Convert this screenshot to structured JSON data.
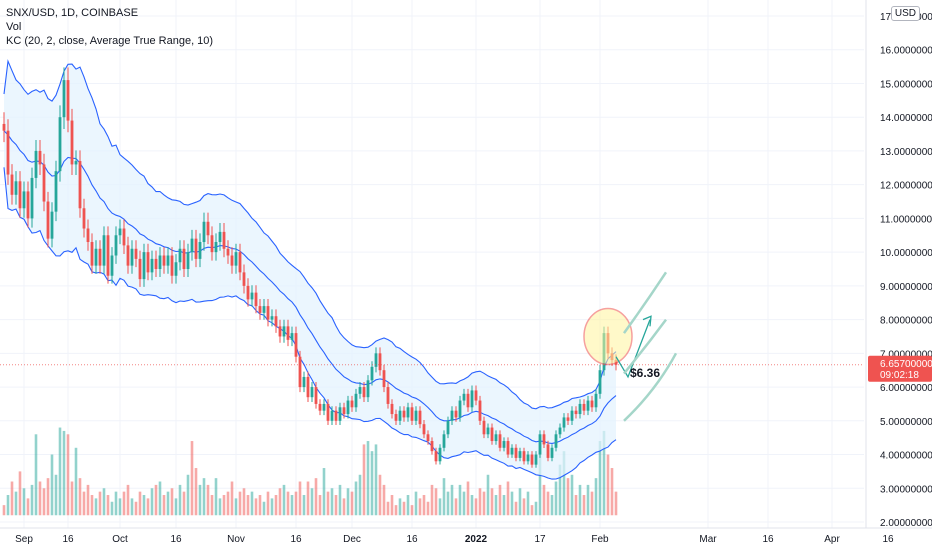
{
  "legend": {
    "symbol": "SNX/USD, 1D, COINBASE",
    "volume": "Vol",
    "indicator": "KC (20, 2, close, Average True Range, 10)"
  },
  "currency_badge": "USD",
  "price_badge": {
    "value": "6.65700000",
    "countdown": "09:02:18"
  },
  "annotation": {
    "target_label": "$6.36"
  },
  "colors": {
    "up": "#26a69a",
    "down": "#ef5350",
    "keltner_band": "#2962ff",
    "keltner_fill": "#e3f2fd",
    "projection": "#a5d6c9",
    "circle_fill": "#fff59d",
    "circle_stroke": "#ef5350",
    "badge": "#ef5350"
  },
  "chart_data": {
    "type": "candlestick",
    "y_axis": {
      "min": 2,
      "max": 17,
      "ticks": [
        "2.00000000",
        "3.00000000",
        "4.00000000",
        "5.00000000",
        "6.00000000",
        "7.00000000",
        "8.00000000",
        "9.00000000",
        "10.00000000",
        "11.00000000",
        "12.00000000",
        "13.00000000",
        "14.00000000",
        "15.00000000",
        "16.00000000",
        "17.00000000"
      ]
    },
    "x_ticks": [
      {
        "label": "Sep",
        "bar": 5
      },
      {
        "label": "16",
        "bar": 16
      },
      {
        "label": "Oct",
        "bar": 29
      },
      {
        "label": "16",
        "bar": 43
      },
      {
        "label": "Nov",
        "bar": 58
      },
      {
        "label": "16",
        "bar": 73
      },
      {
        "label": "Dec",
        "bar": 87
      },
      {
        "label": "16",
        "bar": 102
      },
      {
        "label": "2022",
        "bar": 118
      },
      {
        "label": "17",
        "bar": 134
      },
      {
        "label": "Feb",
        "bar": 149
      },
      {
        "label": "Mar",
        "bar": 176
      },
      {
        "label": "16",
        "bar": 191
      },
      {
        "label": "Apr",
        "bar": 207
      },
      {
        "label": "16",
        "bar": 221
      }
    ],
    "candles": [
      [
        13.8,
        13.6
      ],
      [
        13.6,
        12.3
      ],
      [
        12.3,
        11.7
      ],
      [
        11.7,
        12.1
      ],
      [
        12.1,
        11.3
      ],
      [
        11.3,
        11.8
      ],
      [
        11.8,
        11.0
      ],
      [
        11.0,
        12.2
      ],
      [
        12.2,
        13.0
      ],
      [
        13.0,
        12.6
      ],
      [
        12.6,
        11.5
      ],
      [
        11.5,
        10.4
      ],
      [
        10.4,
        11.2
      ],
      [
        11.2,
        12.4
      ],
      [
        12.4,
        14.0
      ],
      [
        14.0,
        15.1
      ],
      [
        15.1,
        13.9
      ],
      [
        13.9,
        12.6
      ],
      [
        12.6,
        12.7
      ],
      [
        12.7,
        11.3
      ],
      [
        11.3,
        10.7
      ],
      [
        10.7,
        10.3
      ],
      [
        10.3,
        9.6
      ],
      [
        9.6,
        10.1
      ],
      [
        10.1,
        9.6
      ],
      [
        9.6,
        10.5
      ],
      [
        10.5,
        9.3
      ],
      [
        9.3,
        9.9
      ],
      [
        9.9,
        10.5
      ],
      [
        10.5,
        10.7
      ],
      [
        10.7,
        10.2
      ],
      [
        10.2,
        9.6
      ],
      [
        9.6,
        10.1
      ],
      [
        10.1,
        9.8
      ],
      [
        9.8,
        9.2
      ],
      [
        9.2,
        10.0
      ],
      [
        10.0,
        9.4
      ],
      [
        9.4,
        9.8
      ],
      [
        9.8,
        9.5
      ],
      [
        9.5,
        9.9
      ],
      [
        9.9,
        9.6
      ],
      [
        9.6,
        9.9
      ],
      [
        9.9,
        9.3
      ],
      [
        9.3,
        9.7
      ],
      [
        9.7,
        10.1
      ],
      [
        10.1,
        9.5
      ],
      [
        9.5,
        10.0
      ],
      [
        10.0,
        10.4
      ],
      [
        10.4,
        9.8
      ],
      [
        9.8,
        10.3
      ],
      [
        10.3,
        10.9
      ],
      [
        10.9,
        10.5
      ],
      [
        10.5,
        10.0
      ],
      [
        10.0,
        10.3
      ],
      [
        10.3,
        10.6
      ],
      [
        10.6,
        10.1
      ],
      [
        10.1,
        9.9
      ],
      [
        9.9,
        9.6
      ],
      [
        9.6,
        10.0
      ],
      [
        10.0,
        9.4
      ],
      [
        9.4,
        9.0
      ],
      [
        9.0,
        8.6
      ],
      [
        8.6,
        8.8
      ],
      [
        8.8,
        8.4
      ],
      [
        8.4,
        8.2
      ],
      [
        8.2,
        8.4
      ],
      [
        8.4,
        8.0
      ],
      [
        8.0,
        8.1
      ],
      [
        8.1,
        7.8
      ],
      [
        7.8,
        7.5
      ],
      [
        7.5,
        7.8
      ],
      [
        7.8,
        7.4
      ],
      [
        7.4,
        7.6
      ],
      [
        7.6,
        6.9
      ],
      [
        6.9,
        6.0
      ],
      [
        6.0,
        6.3
      ],
      [
        6.3,
        5.7
      ],
      [
        5.7,
        6.0
      ],
      [
        6.0,
        5.5
      ],
      [
        5.5,
        5.3
      ],
      [
        5.3,
        5.5
      ],
      [
        5.5,
        5.0
      ],
      [
        5.0,
        5.3
      ],
      [
        5.3,
        5.0
      ],
      [
        5.0,
        5.4
      ],
      [
        5.4,
        5.2
      ],
      [
        5.2,
        5.6
      ],
      [
        5.6,
        5.4
      ],
      [
        5.4,
        5.8
      ],
      [
        5.8,
        6.0
      ],
      [
        6.0,
        5.7
      ],
      [
        5.7,
        6.2
      ],
      [
        6.2,
        6.6
      ],
      [
        6.6,
        7.0
      ],
      [
        7.0,
        6.5
      ],
      [
        6.5,
        6.0
      ],
      [
        6.0,
        5.5
      ],
      [
        5.5,
        5.2
      ],
      [
        5.2,
        5.0
      ],
      [
        5.0,
        5.3
      ],
      [
        5.3,
        5.1
      ],
      [
        5.1,
        5.4
      ],
      [
        5.4,
        5.0
      ],
      [
        5.0,
        5.3
      ],
      [
        5.3,
        4.9
      ],
      [
        4.9,
        4.6
      ],
      [
        4.6,
        4.4
      ],
      [
        4.4,
        4.1
      ],
      [
        4.1,
        3.8
      ],
      [
        3.8,
        4.2
      ],
      [
        4.2,
        4.6
      ],
      [
        4.6,
        5.0
      ],
      [
        5.0,
        5.3
      ],
      [
        5.3,
        5.1
      ],
      [
        5.1,
        5.6
      ],
      [
        5.6,
        5.8
      ],
      [
        5.8,
        5.4
      ],
      [
        5.4,
        5.9
      ],
      [
        5.9,
        5.6
      ],
      [
        5.6,
        5.0
      ],
      [
        5.0,
        4.6
      ],
      [
        4.6,
        4.8
      ],
      [
        4.8,
        4.4
      ],
      [
        4.4,
        4.6
      ],
      [
        4.6,
        4.2
      ],
      [
        4.2,
        4.4
      ],
      [
        4.4,
        4.0
      ],
      [
        4.0,
        4.2
      ],
      [
        4.2,
        3.9
      ],
      [
        3.9,
        4.1
      ],
      [
        4.1,
        3.8
      ],
      [
        3.8,
        4.0
      ],
      [
        4.0,
        3.7
      ],
      [
        3.7,
        4.0
      ],
      [
        4.0,
        4.6
      ],
      [
        4.6,
        4.3
      ],
      [
        4.3,
        3.9
      ],
      [
        3.9,
        4.2
      ],
      [
        4.2,
        4.6
      ],
      [
        4.6,
        4.8
      ],
      [
        4.8,
        5.1
      ],
      [
        5.1,
        5.0
      ],
      [
        5.0,
        5.3
      ],
      [
        5.3,
        5.2
      ],
      [
        5.2,
        5.5
      ],
      [
        5.5,
        5.3
      ],
      [
        5.3,
        5.6
      ],
      [
        5.6,
        5.4
      ],
      [
        5.4,
        5.8
      ],
      [
        5.8,
        6.5
      ],
      [
        6.5,
        7.6
      ],
      [
        7.6,
        7.0
      ],
      [
        7.0,
        6.8
      ],
      [
        6.8,
        6.66
      ]
    ],
    "volumes": [
      [
        2.5,
        0
      ],
      [
        2.8,
        1
      ],
      [
        3.2,
        0
      ],
      [
        2.9,
        1
      ],
      [
        3.5,
        0
      ],
      [
        3.0,
        1
      ],
      [
        2.7,
        0
      ],
      [
        3.1,
        1
      ],
      [
        4.6,
        1
      ],
      [
        3.2,
        0
      ],
      [
        3.0,
        0
      ],
      [
        3.3,
        0
      ],
      [
        4.0,
        1
      ],
      [
        3.4,
        1
      ],
      [
        4.8,
        1
      ],
      [
        4.7,
        1
      ],
      [
        4.6,
        0
      ],
      [
        3.2,
        0
      ],
      [
        4.2,
        1
      ],
      [
        3.3,
        0
      ],
      [
        2.9,
        0
      ],
      [
        3.1,
        0
      ],
      [
        2.8,
        0
      ],
      [
        2.7,
        1
      ],
      [
        2.9,
        0
      ],
      [
        3.0,
        1
      ],
      [
        2.8,
        0
      ],
      [
        2.6,
        1
      ],
      [
        2.9,
        1
      ],
      [
        2.7,
        1
      ],
      [
        2.9,
        0
      ],
      [
        3.1,
        0
      ],
      [
        2.7,
        1
      ],
      [
        2.6,
        0
      ],
      [
        2.9,
        0
      ],
      [
        2.8,
        1
      ],
      [
        2.7,
        0
      ],
      [
        3.0,
        1
      ],
      [
        3.1,
        0
      ],
      [
        3.2,
        1
      ],
      [
        2.8,
        0
      ],
      [
        2.9,
        1
      ],
      [
        3.0,
        0
      ],
      [
        2.7,
        1
      ],
      [
        3.1,
        1
      ],
      [
        2.9,
        0
      ],
      [
        3.4,
        1
      ],
      [
        4.4,
        0
      ],
      [
        3.6,
        0
      ],
      [
        3.1,
        1
      ],
      [
        3.3,
        1
      ],
      [
        3.1,
        0
      ],
      [
        2.8,
        0
      ],
      [
        3.3,
        1
      ],
      [
        2.7,
        1
      ],
      [
        2.8,
        0
      ],
      [
        2.9,
        0
      ],
      [
        3.2,
        0
      ],
      [
        2.7,
        1
      ],
      [
        2.9,
        0
      ],
      [
        3.0,
        0
      ],
      [
        2.8,
        0
      ],
      [
        2.9,
        1
      ],
      [
        2.7,
        0
      ],
      [
        2.8,
        0
      ],
      [
        2.6,
        1
      ],
      [
        2.9,
        0
      ],
      [
        2.7,
        1
      ],
      [
        2.8,
        0
      ],
      [
        3.0,
        0
      ],
      [
        3.1,
        1
      ],
      [
        2.9,
        0
      ],
      [
        2.8,
        1
      ],
      [
        2.9,
        0
      ],
      [
        3.2,
        0
      ],
      [
        2.8,
        1
      ],
      [
        3.2,
        0
      ],
      [
        3.0,
        1
      ],
      [
        3.3,
        0
      ],
      [
        2.8,
        0
      ],
      [
        3.6,
        1
      ],
      [
        2.9,
        0
      ],
      [
        3.0,
        1
      ],
      [
        2.8,
        0
      ],
      [
        3.1,
        1
      ],
      [
        2.7,
        0
      ],
      [
        3.0,
        1
      ],
      [
        2.9,
        0
      ],
      [
        3.2,
        1
      ],
      [
        3.4,
        1
      ],
      [
        4.3,
        0
      ],
      [
        4.4,
        1
      ],
      [
        4.1,
        1
      ],
      [
        4.3,
        1
      ],
      [
        3.4,
        0
      ],
      [
        3.1,
        0
      ],
      [
        2.6,
        0
      ],
      [
        2.8,
        0
      ],
      [
        2.5,
        0
      ],
      [
        2.7,
        1
      ],
      [
        2.6,
        0
      ],
      [
        2.8,
        1
      ],
      [
        2.5,
        0
      ],
      [
        2.9,
        1
      ],
      [
        2.7,
        0
      ],
      [
        2.8,
        0
      ],
      [
        2.6,
        0
      ],
      [
        3.1,
        0
      ],
      [
        3.0,
        0
      ],
      [
        2.7,
        1
      ],
      [
        3.3,
        1
      ],
      [
        2.9,
        1
      ],
      [
        3.1,
        1
      ],
      [
        2.7,
        0
      ],
      [
        3.1,
        1
      ],
      [
        2.9,
        1
      ],
      [
        3.2,
        0
      ],
      [
        2.8,
        1
      ],
      [
        2.7,
        0
      ],
      [
        3.0,
        0
      ],
      [
        2.9,
        0
      ],
      [
        3.4,
        1
      ],
      [
        3.0,
        0
      ],
      [
        2.8,
        1
      ],
      [
        3.1,
        0
      ],
      [
        2.8,
        1
      ],
      [
        3.2,
        0
      ],
      [
        2.9,
        1
      ],
      [
        2.6,
        0
      ],
      [
        3.0,
        1
      ],
      [
        2.7,
        0
      ],
      [
        2.9,
        1
      ],
      [
        2.5,
        0
      ],
      [
        2.6,
        1
      ],
      [
        4.4,
        1
      ],
      [
        3.1,
        0
      ],
      [
        2.9,
        0
      ],
      [
        2.8,
        1
      ],
      [
        3.2,
        1
      ],
      [
        3.7,
        1
      ],
      [
        4.1,
        1
      ],
      [
        3.3,
        0
      ],
      [
        3.4,
        1
      ],
      [
        2.8,
        0
      ],
      [
        3.1,
        1
      ],
      [
        2.8,
        0
      ],
      [
        3.1,
        1
      ],
      [
        2.9,
        0
      ],
      [
        3.3,
        1
      ],
      [
        4.4,
        1
      ],
      [
        4.7,
        1
      ],
      [
        4.0,
        0
      ],
      [
        3.6,
        0
      ],
      [
        2.9,
        0
      ]
    ]
  }
}
